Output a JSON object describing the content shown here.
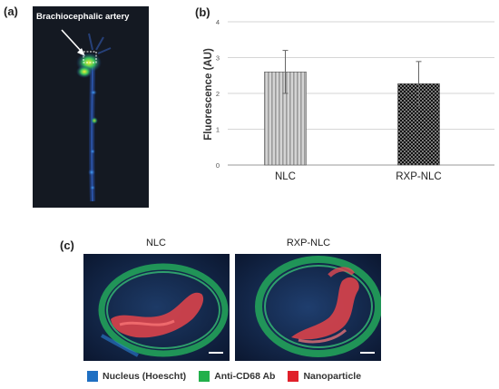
{
  "panel_a": {
    "label": "(a)",
    "annotation": "Brachiocephalic artery"
  },
  "panel_b": {
    "label": "(b)"
  },
  "panel_c": {
    "label": "(c)",
    "image_titles": [
      "NLC",
      "RXP-NLC"
    ],
    "legend": [
      {
        "label": "Nucleus (Hoescht)",
        "color": "#1f6fc2"
      },
      {
        "label": "Anti-CD68 Ab",
        "color": "#22b04b"
      },
      {
        "label": "Nanoparticle",
        "color": "#e0202a"
      }
    ]
  },
  "chart_data": {
    "type": "bar",
    "categories": [
      "NLC",
      "RXP-NLC"
    ],
    "values": [
      2.6,
      2.27
    ],
    "errors": [
      0.6,
      0.62
    ],
    "ylabel": "Fluorescence (AU)",
    "ylim": [
      0,
      4
    ],
    "yticks": [
      "0",
      "1",
      "2",
      "3",
      "4"
    ],
    "grid": true,
    "bar_patterns": [
      "vertical-stripes-light",
      "checker-dark"
    ]
  }
}
